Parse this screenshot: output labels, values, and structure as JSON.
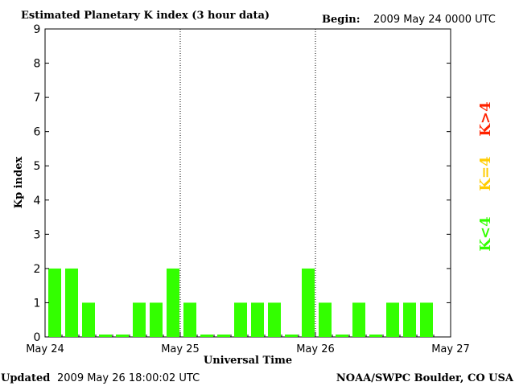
{
  "header": {
    "title": "Estimated Planetary K index (3 hour data)",
    "begin_label": "Begin:",
    "begin_value": "2009 May 24 0000 UTC"
  },
  "footer": {
    "updated_label": "Updated",
    "updated_value": "2009 May 26 18:00:02 UTC",
    "source": "NOAA/SWPC Boulder, CO USA"
  },
  "legend": {
    "items": [
      {
        "label": "K<4",
        "color": "#33ff00"
      },
      {
        "label": "K=4",
        "color": "#ffcc00"
      },
      {
        "label": "K>4",
        "color": "#ff2200"
      }
    ]
  },
  "colors": {
    "bar": "#33ff00",
    "axis": "#000000"
  },
  "chart_data": {
    "type": "bar",
    "title": "Estimated Planetary K index (3 hour data)",
    "xlabel": "Universal Time",
    "ylabel": "Kp index",
    "ylim": [
      0,
      9
    ],
    "yticks": [
      "0",
      "1",
      "2",
      "3",
      "4",
      "5",
      "6",
      "7",
      "8",
      "9"
    ],
    "xticks": [
      "May 24",
      "May 25",
      "May 26",
      "May 27"
    ],
    "day_separators": [
      "May 25",
      "May 26"
    ],
    "interval_hours": 3,
    "values": [
      2,
      2,
      1,
      0,
      0,
      1,
      1,
      2,
      1,
      0,
      0,
      1,
      1,
      1,
      0,
      2,
      1,
      0,
      1,
      0,
      1,
      1,
      1
    ]
  }
}
